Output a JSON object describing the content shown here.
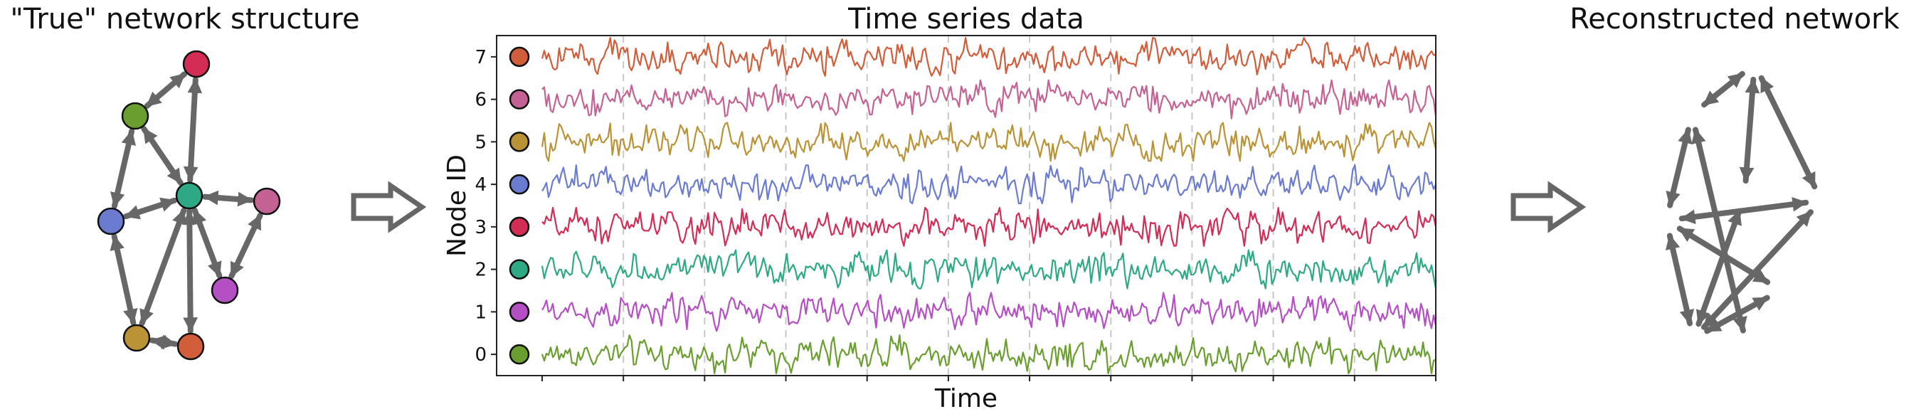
{
  "titles": {
    "left": "\"True\" network structure",
    "middle": "Time series data",
    "right": "Reconstructed network"
  },
  "colors": {
    "edge": "#676767",
    "n0": "#6a9e2f",
    "n1": "#b44fc4",
    "n2": "#2ea986",
    "n3": "#d32d56",
    "n4": "#6a7bd0",
    "n5": "#b99335",
    "n6": "#c46393",
    "n7": "#d15d3a"
  },
  "nodes": [
    {
      "id": 0,
      "color_key": "n0"
    },
    {
      "id": 1,
      "color_key": "n1"
    },
    {
      "id": 2,
      "color_key": "n2"
    },
    {
      "id": 3,
      "color_key": "n3"
    },
    {
      "id": 4,
      "color_key": "n4"
    },
    {
      "id": 5,
      "color_key": "n5"
    },
    {
      "id": 6,
      "color_key": "n6"
    },
    {
      "id": 7,
      "color_key": "n7"
    }
  ],
  "true_network": {
    "edges": [
      [
        3,
        0,
        "both"
      ],
      [
        3,
        2,
        "both"
      ],
      [
        0,
        2,
        "both"
      ],
      [
        0,
        4,
        "both"
      ],
      [
        2,
        4,
        "both"
      ],
      [
        2,
        6,
        "both"
      ],
      [
        2,
        1,
        "both"
      ],
      [
        6,
        1,
        "both"
      ],
      [
        2,
        5,
        "both"
      ],
      [
        2,
        7,
        "both"
      ],
      [
        4,
        5,
        "both"
      ],
      [
        5,
        7,
        "both"
      ]
    ]
  },
  "reconstructed_network": {
    "edges": [
      [
        3,
        0,
        "both"
      ],
      [
        3,
        2,
        "both"
      ],
      [
        3,
        6,
        "both"
      ],
      [
        0,
        4,
        "both"
      ],
      [
        0,
        7,
        "both"
      ],
      [
        2,
        5,
        "both"
      ],
      [
        6,
        4,
        "both"
      ],
      [
        4,
        1,
        "both"
      ],
      [
        4,
        5,
        "both"
      ],
      [
        6,
        5,
        "both"
      ],
      [
        1,
        5,
        "both"
      ]
    ]
  },
  "chart_data": {
    "type": "line",
    "title": "Time series data",
    "xlabel": "Time",
    "ylabel": "Node ID",
    "yticks": [
      "0",
      "1",
      "2",
      "3",
      "4",
      "5",
      "6",
      "7"
    ],
    "ylim": [
      -0.5,
      7.5
    ],
    "grid": "vertical dashed",
    "legend": "colored node markers beside each y tick",
    "series": [
      {
        "node": 0,
        "color_key": "n0",
        "offset": 0
      },
      {
        "node": 1,
        "color_key": "n1",
        "offset": 1
      },
      {
        "node": 2,
        "color_key": "n2",
        "offset": 2
      },
      {
        "node": 3,
        "color_key": "n3",
        "offset": 3
      },
      {
        "node": 4,
        "color_key": "n4",
        "offset": 4
      },
      {
        "node": 5,
        "color_key": "n5",
        "offset": 5
      },
      {
        "node": 6,
        "color_key": "n6",
        "offset": 6
      },
      {
        "node": 7,
        "color_key": "n7",
        "offset": 7
      }
    ]
  }
}
